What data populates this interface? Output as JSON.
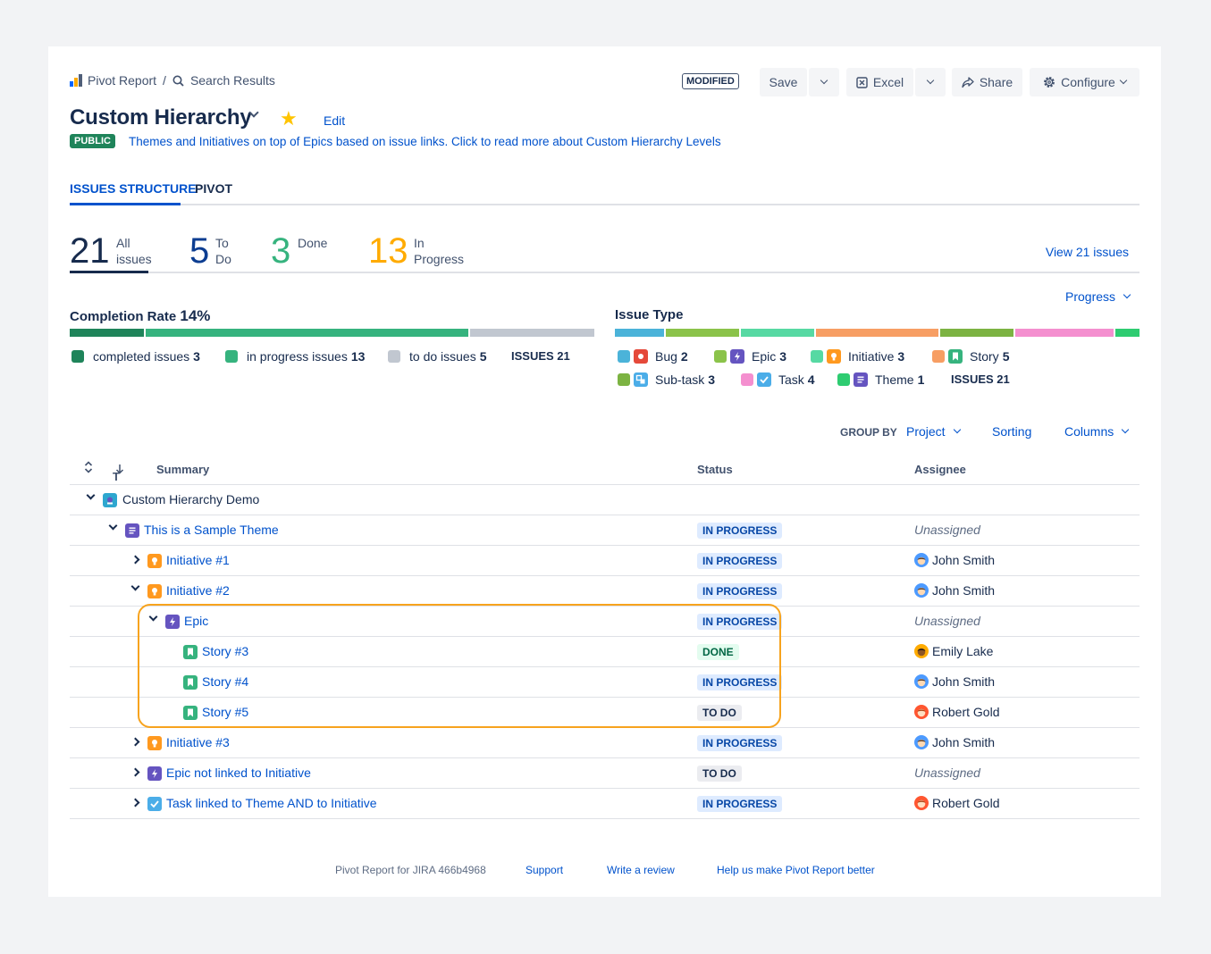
{
  "breadcrumb": {
    "app": "Pivot Report",
    "separator": "/",
    "search": "Search Results"
  },
  "header": {
    "modified_badge": "MODIFIED",
    "save_label": "Save",
    "excel_label": "Excel",
    "share_label": "Share",
    "configure_label": "Configure",
    "title": "Custom Hierarchy",
    "edit_label": "Edit",
    "visibility": "PUBLIC",
    "description": "Themes and Initiatives on top of Epics based on issue links. Click to read more about Custom Hierarchy Levels"
  },
  "tabs": [
    {
      "label": "ISSUES STRUCTURE",
      "active": true
    },
    {
      "label": "PIVOT",
      "active": false
    }
  ],
  "stats": {
    "all": {
      "count": "21",
      "line1": "All",
      "line2": "issues",
      "color": "#172b4d"
    },
    "todo": {
      "count": "5",
      "line1": "To",
      "line2": "Do",
      "color": "#0c3d91"
    },
    "done": {
      "count": "3",
      "line1": "Done",
      "line2": "",
      "color": "#36b37e"
    },
    "progress": {
      "count": "13",
      "line1": "In",
      "line2": "Progress",
      "color": "#ffab00"
    },
    "view_link": "View 21 issues"
  },
  "progress_menu": "Progress",
  "completion": {
    "label": "Completion Rate",
    "rate": "14%",
    "segments": [
      {
        "name": "completed",
        "value": 3,
        "color": "#1f845a"
      },
      {
        "name": "in progress",
        "value": 13,
        "color": "#36b37e"
      },
      {
        "name": "to do",
        "value": 5,
        "color": "#c1c7d0"
      }
    ],
    "legend": [
      {
        "label": "completed issues",
        "count": "3",
        "color": "#1f845a"
      },
      {
        "label": "in progress issues",
        "count": "13",
        "color": "#36b37e"
      },
      {
        "label": "to do issues",
        "count": "5",
        "color": "#c1c7d0"
      }
    ],
    "total": "ISSUES 21"
  },
  "issue_type": {
    "label": "Issue Type",
    "segments": [
      {
        "name": "Bug",
        "value": 2,
        "color": "#4bb3d9"
      },
      {
        "name": "Epic",
        "value": 3,
        "color": "#8bc34a"
      },
      {
        "name": "Initiative",
        "value": 3,
        "color": "#57d9a3"
      },
      {
        "name": "Story",
        "value": 5,
        "color": "#f79e63"
      },
      {
        "name": "Sub-task",
        "value": 3,
        "color": "#7cb342"
      },
      {
        "name": "Task",
        "value": 4,
        "color": "#f48fcf"
      },
      {
        "name": "Theme",
        "value": 1,
        "color": "#2ecc71"
      }
    ],
    "legend_row1": [
      {
        "label": "Bug",
        "count": "2",
        "swatch": "#4bb3d9",
        "icon": "bug-icon",
        "icon_color": "#e5493a"
      },
      {
        "label": "Epic",
        "count": "3",
        "swatch": "#8bc34a",
        "icon": "epic-icon",
        "icon_color": "#6554c0"
      },
      {
        "label": "Initiative",
        "count": "3",
        "swatch": "#57d9a3",
        "icon": "initiative-icon",
        "icon_color": "#ff991f"
      },
      {
        "label": "Story",
        "count": "5",
        "swatch": "#f79e63",
        "icon": "story-icon",
        "icon_color": "#36b37e"
      }
    ],
    "legend_row2": [
      {
        "label": "Sub-task",
        "count": "3",
        "swatch": "#7cb342",
        "icon": "subtask-icon",
        "icon_color": "#4bade8"
      },
      {
        "label": "Task",
        "count": "4",
        "swatch": "#f48fcf",
        "icon": "task-icon",
        "icon_color": "#4bade8"
      },
      {
        "label": "Theme",
        "count": "1",
        "swatch": "#2ecc71",
        "icon": "theme-icon",
        "icon_color": "#6554c0"
      }
    ],
    "total": "ISSUES 21"
  },
  "toolbar": {
    "group_by": "GROUP BY",
    "group_value": "Project",
    "sorting": "Sorting",
    "columns": "Columns"
  },
  "table": {
    "headers": {
      "t": "T",
      "summary": "Summary",
      "status": "Status",
      "assignee": "Assignee"
    },
    "rows": [
      {
        "summary": "Custom Hierarchy Demo",
        "type": "project",
        "status": "",
        "assignee": ""
      },
      {
        "summary": "This is a Sample Theme",
        "type": "theme",
        "status": "IN PROGRESS",
        "assignee": "Unassigned"
      },
      {
        "summary": "Initiative #1",
        "type": "initiative",
        "status": "IN PROGRESS",
        "assignee": "John Smith"
      },
      {
        "summary": "Initiative #2",
        "type": "initiative",
        "status": "IN PROGRESS",
        "assignee": "John Smith"
      },
      {
        "summary": "Epic",
        "type": "epic",
        "status": "IN PROGRESS",
        "assignee": "Unassigned"
      },
      {
        "summary": "Story #3",
        "type": "story",
        "status": "DONE",
        "assignee": "Emily Lake"
      },
      {
        "summary": "Story #4",
        "type": "story",
        "status": "IN PROGRESS",
        "assignee": "John Smith"
      },
      {
        "summary": "Story #5",
        "type": "story",
        "status": "TO DO",
        "assignee": "Robert Gold"
      },
      {
        "summary": "Initiative #3",
        "type": "initiative",
        "status": "IN PROGRESS",
        "assignee": "John Smith"
      },
      {
        "summary": "Epic not linked to Initiative",
        "type": "epic",
        "status": "TO DO",
        "assignee": "Unassigned"
      },
      {
        "summary": "Task linked to Theme AND to Initiative",
        "type": "task",
        "status": "IN PROGRESS",
        "assignee": "Robert Gold"
      }
    ]
  },
  "footer": {
    "version": "Pivot Report for JIRA 466b4968",
    "support": "Support",
    "review": "Write a review",
    "help": "Help us make Pivot Report better"
  }
}
